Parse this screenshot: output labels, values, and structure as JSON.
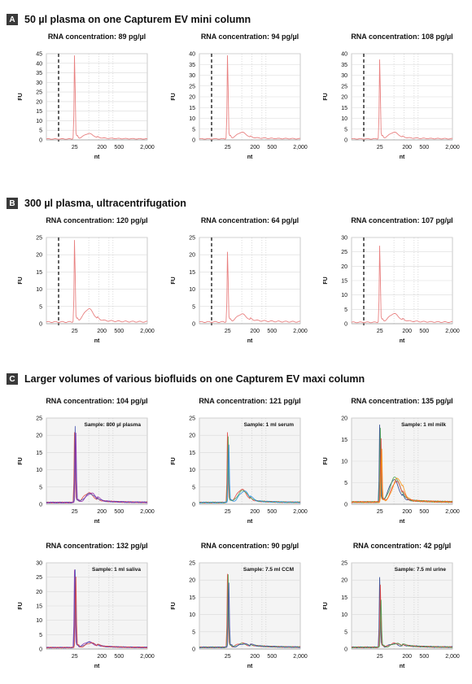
{
  "sections": [
    {
      "badge": "A",
      "title": "50 µl plasma on one Capturem EV mini column"
    },
    {
      "badge": "B",
      "title": "300 µl plasma, ultracentrifugation"
    },
    {
      "badge": "C",
      "title": "Larger volumes of various biofluids on one Capturem EV maxi column"
    }
  ],
  "chart_data": [
    {
      "id": "a1",
      "type": "line",
      "section": "A",
      "title": "RNA concentration: 89 pg/µl",
      "xlabel": "nt",
      "ylabel": "FU",
      "xticks": [
        "25",
        "200",
        "500",
        "2,000"
      ],
      "ylim": [
        0,
        45
      ],
      "yticks": [
        0,
        5,
        10,
        15,
        20,
        25,
        30,
        35,
        40,
        45
      ],
      "series": [
        {
          "color": "#e88080",
          "peak": 45,
          "bump": 2.8
        }
      ]
    },
    {
      "id": "a2",
      "type": "line",
      "section": "A",
      "title": "RNA concentration: 94 pg/µl",
      "xlabel": "nt",
      "ylabel": "FU",
      "xticks": [
        "25",
        "200",
        "500",
        "2,000"
      ],
      "ylim": [
        0,
        40
      ],
      "yticks": [
        0,
        5,
        10,
        15,
        20,
        25,
        30,
        35,
        40
      ],
      "series": [
        {
          "color": "#e88080",
          "peak": 40,
          "bump": 3
        }
      ]
    },
    {
      "id": "a3",
      "type": "line",
      "section": "A",
      "title": "RNA concentration: 108 pg/µl",
      "xlabel": "nt",
      "ylabel": "FU",
      "xticks": [
        "25",
        "200",
        "500",
        "2,000"
      ],
      "ylim": [
        0,
        40
      ],
      "yticks": [
        0,
        5,
        10,
        15,
        20,
        25,
        30,
        35,
        40
      ],
      "series": [
        {
          "color": "#e88080",
          "peak": 38,
          "bump": 3
        }
      ]
    },
    {
      "id": "b1",
      "type": "line",
      "section": "B",
      "title": "RNA concentration: 120 pg/µl",
      "xlabel": "nt",
      "ylabel": "FU",
      "xticks": [
        "25",
        "200",
        "500",
        "2,000"
      ],
      "ylim": [
        0,
        25
      ],
      "yticks": [
        0,
        5,
        10,
        15,
        20,
        25
      ],
      "series": [
        {
          "color": "#e88080",
          "peak": 24.5,
          "bump": 3.8
        }
      ]
    },
    {
      "id": "b2",
      "type": "line",
      "section": "B",
      "title": "RNA concentration: 64 pg/µl",
      "xlabel": "nt",
      "ylabel": "FU",
      "xticks": [
        "25",
        "200",
        "500",
        "2,000"
      ],
      "ylim": [
        0,
        25
      ],
      "yticks": [
        0,
        5,
        10,
        15,
        20,
        25
      ],
      "series": [
        {
          "color": "#e88080",
          "peak": 21,
          "bump": 2.3
        }
      ]
    },
    {
      "id": "b3",
      "type": "line",
      "section": "B",
      "title": "RNA concentration: 107 pg/µl",
      "xlabel": "nt",
      "ylabel": "FU",
      "xticks": [
        "25",
        "200",
        "500",
        "2,000"
      ],
      "ylim": [
        0,
        30
      ],
      "yticks": [
        0,
        5,
        10,
        15,
        20,
        25,
        30
      ],
      "series": [
        {
          "color": "#e88080",
          "peak": 27.5,
          "bump": 3
        }
      ]
    },
    {
      "id": "c1",
      "type": "line",
      "section": "C",
      "title": "RNA concentration: 104 pg/µl",
      "sample": "Sample: 800 µl plasma",
      "xlabel": "nt",
      "ylabel": "FU",
      "xticks": [
        "25",
        "200",
        "500",
        "2,000"
      ],
      "ylim": [
        0,
        25
      ],
      "yticks": [
        0,
        5,
        10,
        15,
        20,
        25
      ],
      "series": [
        {
          "color": "#e53935",
          "peak": 21,
          "bump": 2.8
        },
        {
          "color": "#3949ab",
          "peak": 22,
          "bump": 2.6
        },
        {
          "color": "#8e24aa",
          "peak": 20.5,
          "bump": 2.7
        }
      ]
    },
    {
      "id": "c2",
      "type": "line",
      "section": "C",
      "title": "RNA concentration: 121 pg/µl",
      "sample": "Sample: 1 ml serum",
      "xlabel": "nt",
      "ylabel": "FU",
      "xticks": [
        "25",
        "200",
        "500",
        "2,000"
      ],
      "ylim": [
        0,
        25
      ],
      "yticks": [
        0,
        5,
        10,
        15,
        20,
        25
      ],
      "series": [
        {
          "color": "#e53935",
          "peak": 21,
          "bump": 3.8
        },
        {
          "color": "#43a047",
          "peak": 19,
          "bump": 3.5
        },
        {
          "color": "#1e88e5",
          "peak": 17,
          "bump": 3.3
        }
      ]
    },
    {
      "id": "c3",
      "type": "line",
      "section": "C",
      "title": "RNA concentration: 135 pg/µl",
      "sample": "Sample: 1 ml milk",
      "xlabel": "nt",
      "ylabel": "FU",
      "xticks": [
        "25",
        "200",
        "500",
        "2,000"
      ],
      "ylim": [
        0,
        20
      ],
      "yticks": [
        0,
        5,
        10,
        15,
        20
      ],
      "series": [
        {
          "color": "#1e3a8a",
          "peak": 18.5,
          "bump": 5.2
        },
        {
          "color": "#43a047",
          "peak": 17,
          "bump": 5.8
        },
        {
          "color": "#e53935",
          "peak": 15,
          "bump": 4.8
        },
        {
          "color": "#fb8c00",
          "peak": 13,
          "bump": 5.5
        }
      ]
    },
    {
      "id": "c4",
      "type": "line",
      "section": "C",
      "title": "RNA concentration: 132 pg/µl",
      "sample": "Sample: 1 ml saliva",
      "xlabel": "nt",
      "ylabel": "FU",
      "xticks": [
        "25",
        "200",
        "500",
        "2,000"
      ],
      "ylim": [
        0,
        30
      ],
      "yticks": [
        0,
        5,
        10,
        15,
        20,
        25,
        30
      ],
      "series": [
        {
          "color": "#8e24aa",
          "peak": 28,
          "bump": 2
        },
        {
          "color": "#3949ab",
          "peak": 27,
          "bump": 1.8
        },
        {
          "color": "#e53935",
          "peak": 25,
          "bump": 1.6
        }
      ]
    },
    {
      "id": "c5",
      "type": "line",
      "section": "C",
      "title": "RNA concentration: 90 pg/µl",
      "sample": "Sample: 7.5 ml CCM",
      "xlabel": "nt",
      "ylabel": "FU",
      "xticks": [
        "25",
        "200",
        "500",
        "2,000"
      ],
      "ylim": [
        0,
        25
      ],
      "yticks": [
        0,
        5,
        10,
        15,
        20,
        25
      ],
      "series": [
        {
          "color": "#e53935",
          "peak": 22,
          "bump": 1.2
        },
        {
          "color": "#43a047",
          "peak": 21,
          "bump": 1.1
        },
        {
          "color": "#3949ab",
          "peak": 19,
          "bump": 1
        }
      ]
    },
    {
      "id": "c6",
      "type": "line",
      "section": "C",
      "title": "RNA concentration: 42 pg/µl",
      "sample": "Sample: 7.5 ml urine",
      "xlabel": "nt",
      "ylabel": "FU",
      "xticks": [
        "25",
        "200",
        "500",
        "2,000"
      ],
      "ylim": [
        0,
        25
      ],
      "yticks": [
        0,
        5,
        10,
        15,
        20,
        25
      ],
      "series": [
        {
          "color": "#1e3a8a",
          "peak": 21,
          "bump": 1
        },
        {
          "color": "#e53935",
          "peak": 18,
          "bump": 1.2
        },
        {
          "color": "#43a047",
          "peak": 14,
          "bump": 1.1
        }
      ]
    }
  ]
}
